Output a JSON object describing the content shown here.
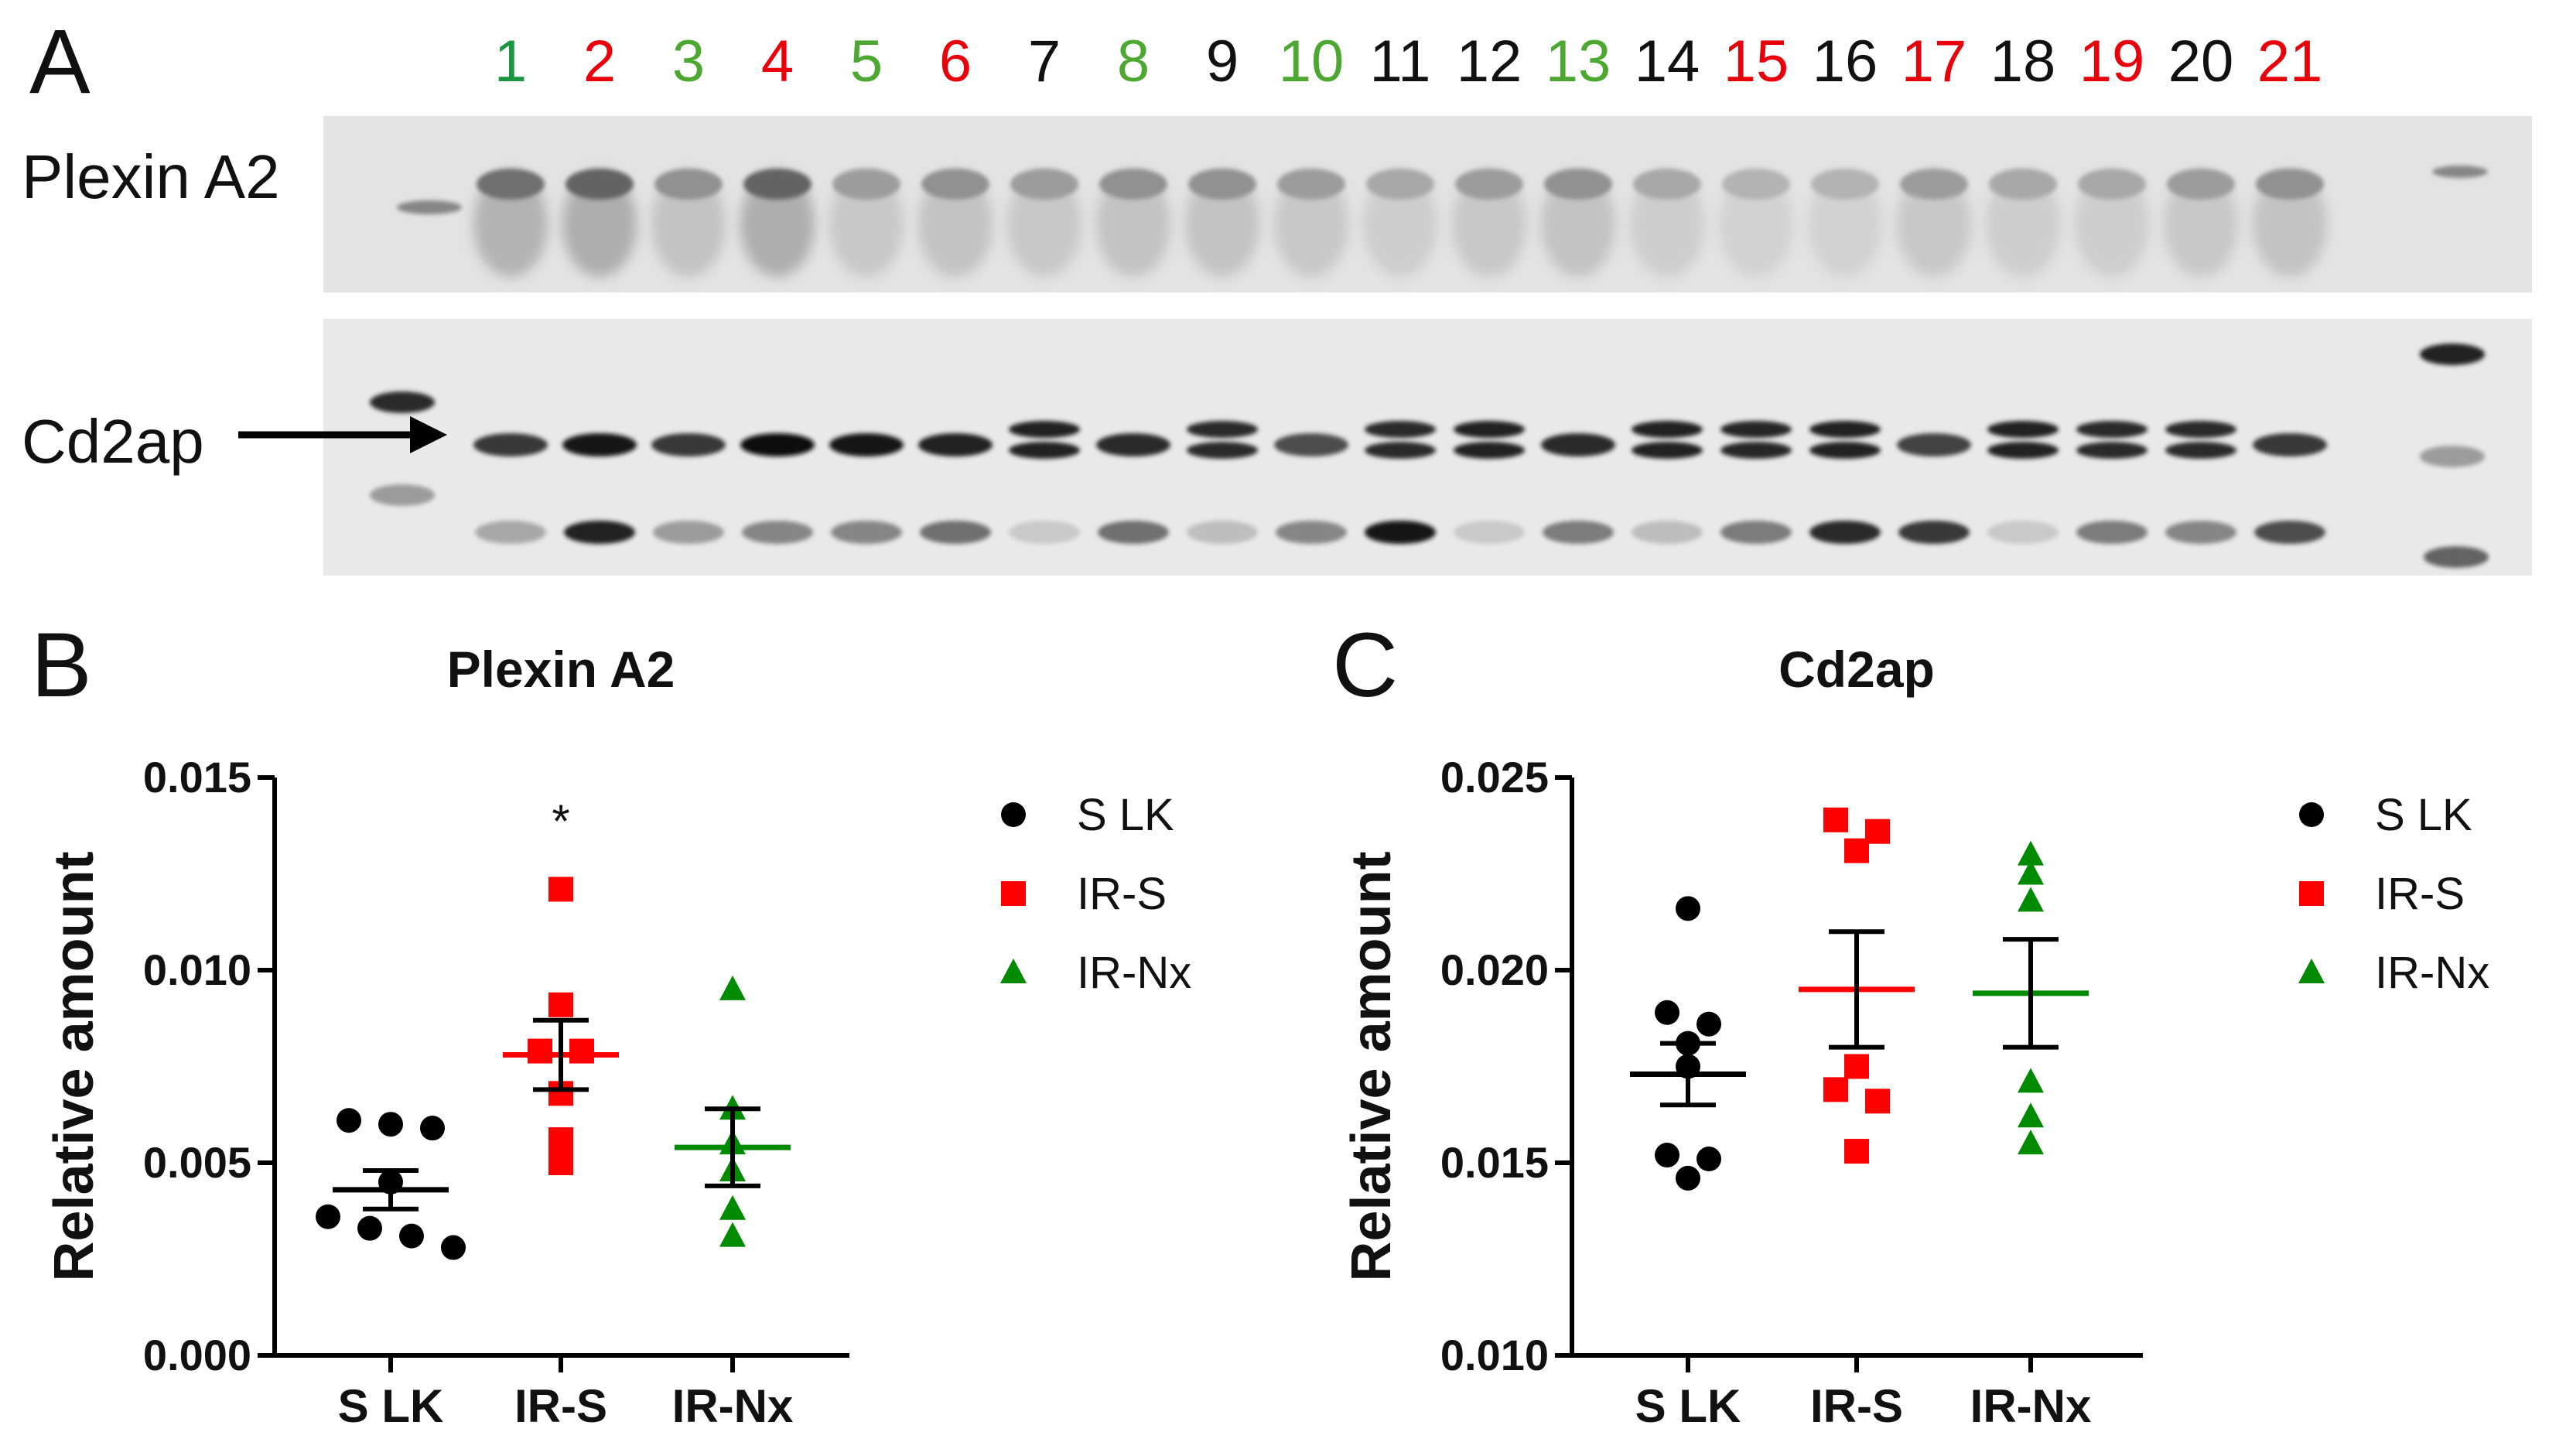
{
  "panel_letters": [
    "A",
    "B",
    "C"
  ],
  "lanes": [
    {
      "label": "1",
      "color": "#1a9641"
    },
    {
      "label": "2",
      "color": "#e8000b"
    },
    {
      "label": "3",
      "color": "#4da832"
    },
    {
      "label": "4",
      "color": "#e8000b"
    },
    {
      "label": "5",
      "color": "#4da832"
    },
    {
      "label": "6",
      "color": "#e8000b"
    },
    {
      "label": "7",
      "color": "#111111"
    },
    {
      "label": "8",
      "color": "#4da832"
    },
    {
      "label": "9",
      "color": "#111111"
    },
    {
      "label": "10",
      "color": "#4da832"
    },
    {
      "label": "11",
      "color": "#111111"
    },
    {
      "label": "12",
      "color": "#111111"
    },
    {
      "label": "13",
      "color": "#4da832"
    },
    {
      "label": "14",
      "color": "#111111"
    },
    {
      "label": "15",
      "color": "#e8000b"
    },
    {
      "label": "16",
      "color": "#111111"
    },
    {
      "label": "17",
      "color": "#e8000b"
    },
    {
      "label": "18",
      "color": "#111111"
    },
    {
      "label": "19",
      "color": "#e8000b"
    },
    {
      "label": "20",
      "color": "#111111"
    },
    {
      "label": "21",
      "color": "#e8000b"
    }
  ],
  "blot": {
    "plexin_label": "Plexin A2",
    "cd2ap_label": "Cd2ap",
    "plexin_intensity": [
      0.55,
      0.6,
      0.4,
      0.6,
      0.35,
      0.4,
      0.35,
      0.4,
      0.4,
      0.35,
      0.3,
      0.35,
      0.4,
      0.3,
      0.25,
      0.25,
      0.35,
      0.3,
      0.3,
      0.35,
      0.4
    ],
    "cd2ap_main_intensity": [
      0.8,
      0.95,
      0.8,
      0.98,
      0.95,
      0.9,
      0.9,
      0.85,
      0.85,
      0.7,
      0.85,
      0.9,
      0.85,
      0.9,
      0.88,
      0.9,
      0.75,
      0.9,
      0.85,
      0.85,
      0.8
    ],
    "cd2ap_doublet": [
      false,
      false,
      false,
      false,
      false,
      false,
      true,
      false,
      true,
      false,
      true,
      true,
      false,
      true,
      true,
      true,
      false,
      true,
      true,
      true,
      false
    ],
    "lower_band_intensity": [
      0.3,
      0.9,
      0.35,
      0.45,
      0.45,
      0.55,
      0.15,
      0.55,
      0.2,
      0.45,
      0.95,
      0.15,
      0.5,
      0.2,
      0.5,
      0.85,
      0.8,
      0.15,
      0.5,
      0.45,
      0.7
    ]
  },
  "legend": [
    {
      "label": "S LK",
      "color": "#000000",
      "shape": "circle"
    },
    {
      "label": "IR-S",
      "color": "#ff0000",
      "shape": "square"
    },
    {
      "label": "IR-Nx",
      "color": "#008a00",
      "shape": "triangle"
    }
  ],
  "chart_data": [
    {
      "type": "scatter",
      "title": "Plexin A2",
      "ylabel": "Relative amount",
      "xlabel": "",
      "categories": [
        "S LK",
        "IR-S",
        "IR-Nx"
      ],
      "ylim": [
        0.0,
        0.015
      ],
      "yticks": [
        "0.000",
        "0.005",
        "0.010",
        "0.015"
      ],
      "annotations": [
        {
          "text": "*",
          "category": "IR-S",
          "y": 0.0139
        }
      ],
      "series": [
        {
          "name": "S LK",
          "shape": "circle",
          "color": "#000000",
          "values": [
            0.0059,
            0.006,
            0.0061,
            0.0045,
            0.0036,
            0.0033,
            0.0028,
            0.0031
          ],
          "mean": 0.0043,
          "sem": 0.0005
        },
        {
          "name": "IR-S",
          "shape": "square",
          "color": "#ff0000",
          "values": [
            0.0121,
            0.0091,
            0.0079,
            0.0079,
            0.0068,
            0.0056,
            0.005
          ],
          "mean": 0.0078,
          "sem": 0.0009
        },
        {
          "name": "IR-Nx",
          "shape": "triangle",
          "color": "#008a00",
          "values": [
            0.0095,
            0.0064,
            0.0048,
            0.0038,
            0.0031,
            0.0055
          ],
          "mean": 0.0054,
          "sem": 0.001
        }
      ]
    },
    {
      "type": "scatter",
      "title": "Cd2ap",
      "ylabel": "Relative amount",
      "xlabel": "",
      "categories": [
        "S LK",
        "IR-S",
        "IR-Nx"
      ],
      "ylim": [
        0.01,
        0.025
      ],
      "yticks": [
        "0.010",
        "0.015",
        "0.020",
        "0.025"
      ],
      "series": [
        {
          "name": "S LK",
          "shape": "circle",
          "color": "#000000",
          "values": [
            0.0216,
            0.0189,
            0.0186,
            0.0181,
            0.0175,
            0.0152,
            0.0151,
            0.0146
          ],
          "mean": 0.0173,
          "sem": 0.0008
        },
        {
          "name": "IR-S",
          "shape": "square",
          "color": "#ff0000",
          "values": [
            0.0236,
            0.0239,
            0.0231,
            0.0175,
            0.0169,
            0.0166,
            0.0153
          ],
          "mean": 0.0195,
          "sem": 0.0015
        },
        {
          "name": "IR-Nx",
          "shape": "triangle",
          "color": "#008a00",
          "values": [
            0.023,
            0.0225,
            0.0218,
            0.0171,
            0.0162,
            0.0155
          ],
          "mean": 0.0194,
          "sem": 0.0014
        }
      ]
    }
  ]
}
